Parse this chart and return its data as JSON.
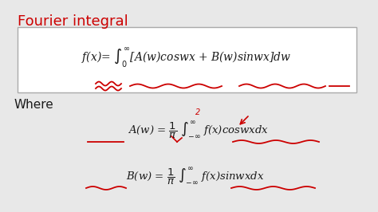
{
  "title": "Fourier integral",
  "title_color": "#cc0000",
  "bg_color": "#e8e8e8",
  "white": "#ffffff",
  "red": "#cc0000",
  "black": "#1a1a1a",
  "box_edge": "#aaaaaa",
  "title_fs": 13,
  "main_fs": 10,
  "sub_fs": 9.5,
  "where_fs": 11
}
